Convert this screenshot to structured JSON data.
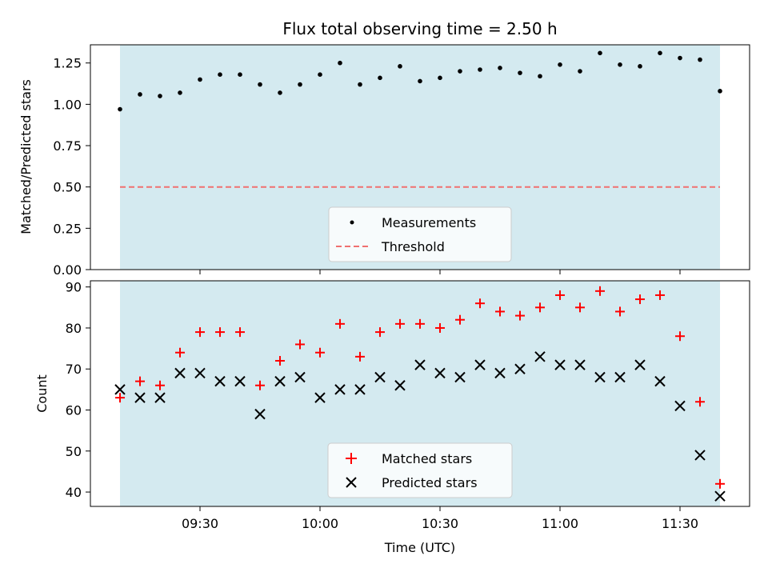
{
  "chart_data": [
    {
      "type": "scatter",
      "title": "Flux total observing time = 2.50 h",
      "xlabel": "",
      "ylabel": "Matched/Predicted stars",
      "ylim": [
        0.0,
        1.36
      ],
      "yticks": [
        "0.00",
        "0.25",
        "0.50",
        "0.75",
        "1.00",
        "1.25"
      ],
      "shaded_region": {
        "from": "09:10",
        "to": "11:40",
        "color": "#d4eaf0"
      },
      "legend": {
        "placement": "lower-center",
        "entries": [
          "Measurements",
          "Threshold"
        ]
      },
      "threshold": {
        "name": "Threshold",
        "value": 0.5,
        "style": "dashed",
        "color": "#f07070"
      },
      "series": [
        {
          "name": "Measurements",
          "color": "#000000",
          "x": [
            "09:10",
            "09:15",
            "09:20",
            "09:25",
            "09:30",
            "09:35",
            "09:40",
            "09:45",
            "09:50",
            "09:55",
            "10:00",
            "10:05",
            "10:10",
            "10:15",
            "10:20",
            "10:25",
            "10:30",
            "10:35",
            "10:40",
            "10:45",
            "10:50",
            "10:55",
            "11:00",
            "11:05",
            "11:10",
            "11:15",
            "11:20",
            "11:25",
            "11:30",
            "11:35",
            "11:40"
          ],
          "values": [
            0.97,
            1.06,
            1.05,
            1.07,
            1.15,
            1.18,
            1.18,
            1.12,
            1.07,
            1.12,
            1.18,
            1.25,
            1.12,
            1.16,
            1.23,
            1.14,
            1.16,
            1.2,
            1.21,
            1.22,
            1.19,
            1.17,
            1.24,
            1.2,
            1.31,
            1.24,
            1.23,
            1.31,
            1.28,
            1.27,
            1.08
          ]
        }
      ]
    },
    {
      "type": "scatter",
      "title": "",
      "xlabel": "Time (UTC)",
      "ylabel": "Count",
      "ylim": [
        36.5,
        91.5
      ],
      "yticks": [
        "40",
        "50",
        "60",
        "70",
        "80",
        "90"
      ],
      "xticks": [
        "09:30",
        "10:00",
        "10:30",
        "11:00",
        "11:30"
      ],
      "shaded_region": {
        "from": "09:10",
        "to": "11:40",
        "color": "#d4eaf0"
      },
      "legend": {
        "placement": "lower-center",
        "entries": [
          "Matched stars",
          "Predicted stars"
        ]
      },
      "series": [
        {
          "name": "Matched stars",
          "marker": "plus",
          "color": "#ff0000",
          "x": [
            "09:10",
            "09:15",
            "09:20",
            "09:25",
            "09:30",
            "09:35",
            "09:40",
            "09:45",
            "09:50",
            "09:55",
            "10:00",
            "10:05",
            "10:10",
            "10:15",
            "10:20",
            "10:25",
            "10:30",
            "10:35",
            "10:40",
            "10:45",
            "10:50",
            "10:55",
            "11:00",
            "11:05",
            "11:10",
            "11:15",
            "11:20",
            "11:25",
            "11:30",
            "11:35",
            "11:40"
          ],
          "values": [
            63,
            67,
            66,
            74,
            79,
            79,
            79,
            66,
            72,
            76,
            74,
            81,
            73,
            79,
            81,
            81,
            80,
            82,
            86,
            84,
            83,
            85,
            88,
            85,
            89,
            84,
            87,
            88,
            78,
            62,
            42
          ]
        },
        {
          "name": "Predicted stars",
          "marker": "x",
          "color": "#000000",
          "x": [
            "09:10",
            "09:15",
            "09:20",
            "09:25",
            "09:30",
            "09:35",
            "09:40",
            "09:45",
            "09:50",
            "09:55",
            "10:00",
            "10:05",
            "10:10",
            "10:15",
            "10:20",
            "10:25",
            "10:30",
            "10:35",
            "10:40",
            "10:45",
            "10:50",
            "10:55",
            "11:00",
            "11:05",
            "11:10",
            "11:15",
            "11:20",
            "11:25",
            "11:30",
            "11:35",
            "11:40"
          ],
          "values": [
            65,
            63,
            63,
            69,
            69,
            67,
            67,
            59,
            67,
            68,
            63,
            65,
            65,
            68,
            66,
            71,
            69,
            68,
            71,
            69,
            70,
            73,
            71,
            71,
            68,
            68,
            71,
            67,
            61,
            49,
            39
          ]
        }
      ]
    }
  ]
}
